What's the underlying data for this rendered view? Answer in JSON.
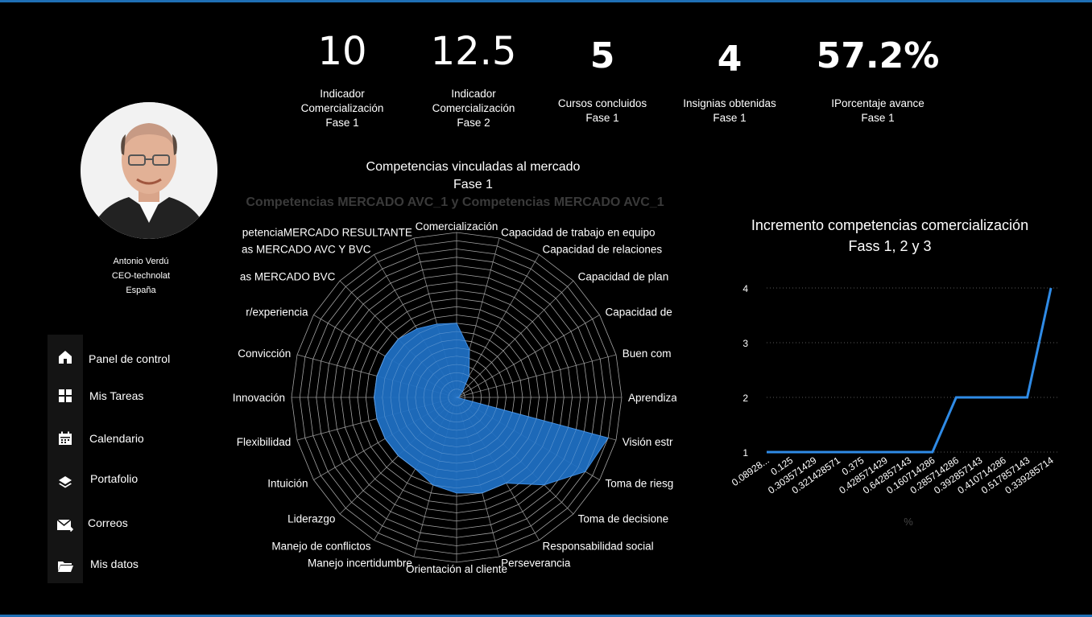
{
  "kpis": [
    {
      "value": "10",
      "label": [
        "Indicador",
        "Comercialización",
        "Fase 1"
      ]
    },
    {
      "value": "12.5",
      "label": [
        "Indicador",
        "Comercialización",
        "Fase 2"
      ]
    },
    {
      "value": "5",
      "label": [
        "Cursos concluidos",
        "Fase 1"
      ]
    },
    {
      "value": "4",
      "label": [
        "Insignias obtenidas",
        "Fase 1"
      ]
    },
    {
      "value": "57.2%",
      "label": [
        "IPorcentaje avance",
        "Fase 1"
      ]
    }
  ],
  "profile": {
    "name": "Antonio Verdú",
    "role": "CEO-technolat",
    "country": "España"
  },
  "nav": [
    {
      "label": "Panel de control",
      "icon": "home-icon"
    },
    {
      "label": "Mis Tareas",
      "icon": "grid-icon"
    },
    {
      "label": "Calendario",
      "icon": "calendar-icon"
    },
    {
      "label": "Portafolio",
      "icon": "layers-icon"
    },
    {
      "label": "Correos",
      "icon": "mail-icon"
    },
    {
      "label": "Mis datos",
      "icon": "folder-icon"
    }
  ],
  "chart_data": [
    {
      "type": "radar",
      "title": "Competencias vinculadas al mercado",
      "title_line2": "Fase 1",
      "subtitle": "Competencias MERCADO AVC_1 y Competencias MERCADO AVC_1",
      "categories": [
        "Comercialización",
        "Capacidad de trabajo en equipo",
        "Capacidad de relaciones",
        "Capacidad de plan",
        "Capacidad de",
        "Buen com",
        "Aprendiza",
        "Visión estr",
        "Toma de riesg",
        "Toma de decisione",
        "Responsabilidad social",
        "Perseverancia",
        "Orientación al cliente",
        "Manejo incertidumbre",
        "Manejo de conflictos",
        "Liderazgo",
        "Intuición",
        "Flexibilidad",
        "Innovación",
        "Convicción",
        "r/experiencia",
        "as MERCADO BVC",
        "as MERCADO AVC Y BVC",
        "petenciaMERCADO RESULTANTE"
      ],
      "values": [
        0.45,
        0.3,
        0.15,
        0.05,
        0.02,
        0.02,
        0.0,
        0.95,
        0.9,
        0.75,
        0.6,
        0.6,
        0.58,
        0.55,
        0.5,
        0.5,
        0.5,
        0.5,
        0.5,
        0.5,
        0.5,
        0.5,
        0.48,
        0.46
      ],
      "rmax": 1,
      "rings": 20,
      "fill_color": "#1f6fc2"
    },
    {
      "type": "line",
      "title": "Incremento competencias comercialización",
      "title_line2": "Fass 1, 2 y 3",
      "categories": [
        "0.08928...",
        "0.125",
        "0.303571429",
        "0.321428571",
        "0.375",
        "0.428571429",
        "0.642857143",
        "0.160714286",
        "0.285714286",
        "0.392857143",
        "0.410714286",
        "0.517857143",
        "0.339285714"
      ],
      "values": [
        1,
        1,
        1,
        1,
        1,
        1,
        1,
        1,
        2,
        2,
        2,
        2,
        4
      ],
      "xlabel": "%",
      "ylim": [
        1,
        4
      ],
      "yticks": [
        1,
        2,
        3,
        4
      ],
      "line_color": "#2f8be6",
      "grid": true
    }
  ]
}
